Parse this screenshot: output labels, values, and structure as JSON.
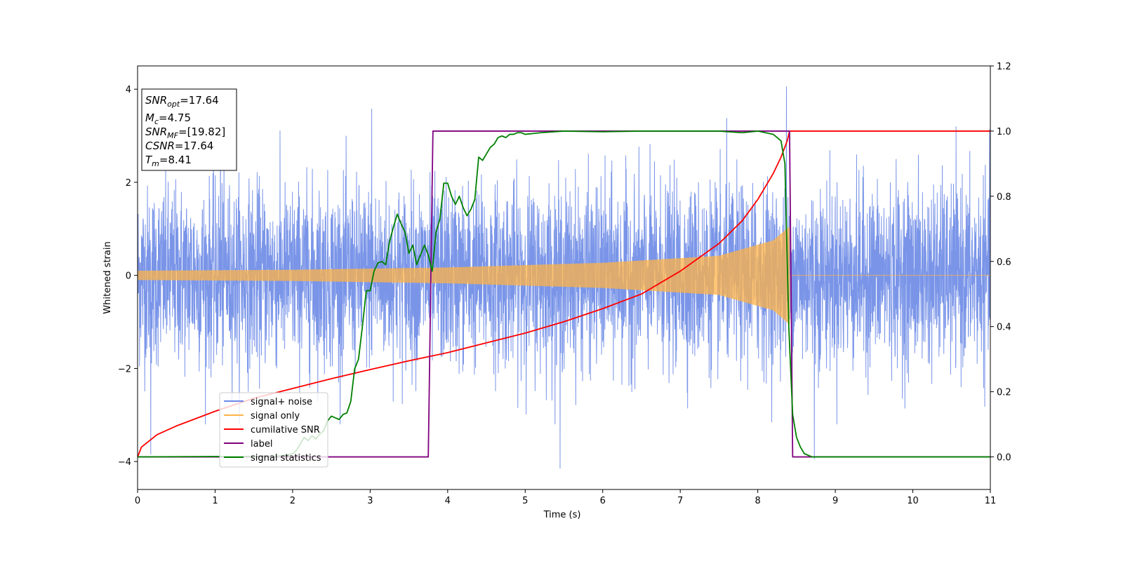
{
  "chart_data": {
    "type": "line",
    "title": "",
    "xlabel": "Time (s)",
    "ylabel": "Whitened strain",
    "xlim": [
      0,
      11
    ],
    "ylim_left": [
      -4.6,
      4.5
    ],
    "ylim_right": [
      -0.1,
      1.2
    ],
    "xticks": [
      0,
      1,
      2,
      3,
      4,
      5,
      6,
      7,
      8,
      9,
      10,
      11
    ],
    "yticks_left": [
      -4,
      -2,
      0,
      2,
      4
    ],
    "yticks_right": [
      0.0,
      0.2,
      0.4,
      0.6,
      0.8,
      1.0,
      1.2
    ],
    "grid": false,
    "legend_position": "lower-left",
    "annotation": {
      "snr_opt": "17.64",
      "mc": "4.75",
      "snr_mf": "[19.82]",
      "csnr": "17.64",
      "tm": "8.41"
    },
    "series": [
      {
        "name": "signal+ noise",
        "axis": "left",
        "color": "#6b8ae6",
        "description": "whitened noise plus signal, amplitude roughly ±2.5 with spikes to 4.1",
        "envelope_peaks": [
          [
            0.17,
            -3.85
          ],
          [
            1.07,
            3.65
          ],
          [
            3.02,
            3.58
          ],
          [
            5.45,
            -4.15
          ],
          [
            7.6,
            3.38
          ],
          [
            8.37,
            4.06
          ],
          [
            8.73,
            -3.95
          ]
        ]
      },
      {
        "name": "signal only",
        "axis": "left",
        "color": "#ffb347",
        "description": "chirp from 0 to 8.41 s with growing amplitude, zero afterwards",
        "amplitude_points": [
          [
            0,
            0.1
          ],
          [
            2,
            0.12
          ],
          [
            4,
            0.17
          ],
          [
            6,
            0.27
          ],
          [
            7.5,
            0.42
          ],
          [
            8.2,
            0.75
          ],
          [
            8.41,
            1.05
          ]
        ],
        "end_time": 8.41
      },
      {
        "name": "cumilative SNR",
        "axis": "right",
        "color": "#ff0000",
        "x": [
          0,
          0.05,
          0.25,
          0.5,
          1.0,
          1.5,
          2.0,
          2.5,
          3.0,
          3.5,
          4.0,
          4.5,
          5.0,
          5.5,
          6.0,
          6.5,
          7.0,
          7.5,
          7.8,
          8.0,
          8.2,
          8.3,
          8.38,
          8.41,
          11.0
        ],
        "y": [
          0.0,
          0.03,
          0.068,
          0.095,
          0.14,
          0.18,
          0.21,
          0.24,
          0.268,
          0.295,
          0.32,
          0.35,
          0.38,
          0.415,
          0.455,
          0.5,
          0.57,
          0.655,
          0.725,
          0.79,
          0.87,
          0.92,
          0.97,
          1.0,
          1.0
        ]
      },
      {
        "name": "label",
        "axis": "right",
        "color": "#800080",
        "x": [
          0,
          3.75,
          3.81,
          8.41,
          8.45,
          11.0
        ],
        "y": [
          0.0,
          0.0,
          1.0,
          1.0,
          0.0,
          0.0
        ]
      },
      {
        "name": "signal statistics",
        "axis": "right",
        "color": "#008000",
        "x": [
          0,
          1.8,
          1.9,
          2.0,
          2.05,
          2.1,
          2.15,
          2.2,
          2.25,
          2.3,
          2.35,
          2.4,
          2.45,
          2.5,
          2.55,
          2.6,
          2.65,
          2.7,
          2.75,
          2.8,
          2.85,
          2.9,
          2.95,
          3.0,
          3.05,
          3.1,
          3.15,
          3.2,
          3.25,
          3.3,
          3.35,
          3.4,
          3.45,
          3.5,
          3.55,
          3.6,
          3.65,
          3.7,
          3.75,
          3.8,
          3.85,
          3.9,
          3.95,
          4.0,
          4.05,
          4.1,
          4.15,
          4.2,
          4.25,
          4.3,
          4.35,
          4.4,
          4.45,
          4.5,
          4.55,
          4.6,
          4.65,
          4.7,
          4.75,
          4.8,
          4.85,
          4.9,
          4.95,
          5.0,
          5.2,
          5.5,
          6.0,
          6.5,
          7.0,
          7.5,
          7.8,
          8.0,
          8.2,
          8.3,
          8.35,
          8.4,
          8.45,
          8.5,
          8.55,
          8.6,
          8.7,
          9.0,
          11.0
        ],
        "y": [
          0.0,
          0.002,
          0.005,
          0.01,
          0.02,
          0.04,
          0.06,
          0.05,
          0.065,
          0.055,
          0.07,
          0.08,
          0.11,
          0.125,
          0.12,
          0.115,
          0.13,
          0.135,
          0.17,
          0.27,
          0.3,
          0.4,
          0.51,
          0.51,
          0.57,
          0.595,
          0.6,
          0.59,
          0.66,
          0.705,
          0.745,
          0.715,
          0.69,
          0.625,
          0.65,
          0.59,
          0.62,
          0.65,
          0.62,
          0.57,
          0.69,
          0.73,
          0.84,
          0.84,
          0.8,
          0.775,
          0.8,
          0.765,
          0.74,
          0.76,
          0.79,
          0.92,
          0.91,
          0.93,
          0.95,
          0.96,
          0.98,
          0.985,
          0.98,
          0.99,
          0.99,
          0.995,
          0.995,
          0.99,
          0.995,
          1.0,
          0.998,
          1.0,
          1.0,
          1.0,
          0.995,
          1.0,
          0.99,
          0.97,
          0.9,
          0.4,
          0.13,
          0.06,
          0.03,
          0.01,
          0.0,
          0.0,
          0.0
        ]
      }
    ]
  }
}
